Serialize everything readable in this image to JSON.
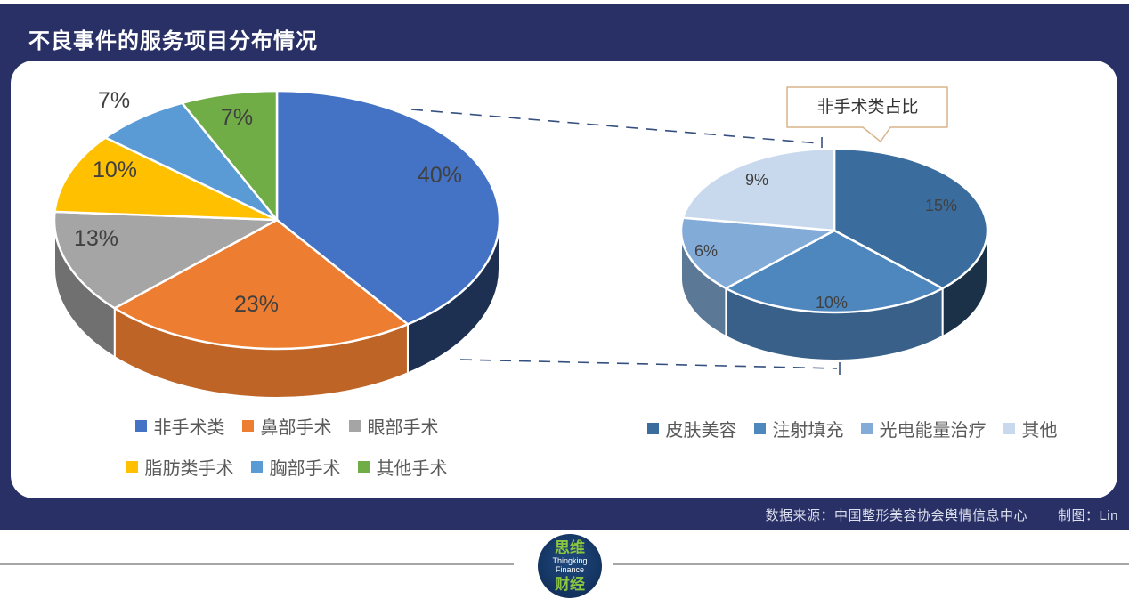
{
  "page": {
    "title": "不良事件的服务项目分布情况"
  },
  "callout": {
    "text": "非手术类占比"
  },
  "footer": {
    "source": "数据来源：中国整形美容协会舆情信息中心",
    "credit": "制图：Lin"
  },
  "logo": {
    "top": "思维",
    "en1": "Thingking",
    "en2": "Finance",
    "bottom": "财经"
  },
  "colors": {
    "background": "#293066",
    "card": "#ffffff",
    "callout_border": "#d9b48b",
    "dashed_line": "#35507f",
    "slice_label_text": "#404040",
    "legend_text": "#595959",
    "logo_green": "#8cc63f"
  },
  "chart_data": [
    {
      "type": "pie",
      "style": "3d",
      "title": "不良事件的服务项目分布情况",
      "categories": [
        "非手术类",
        "鼻部手术",
        "眼部手术",
        "脂肪类手术",
        "胸部手术",
        "其他手术"
      ],
      "values": [
        40,
        23,
        13,
        10,
        7,
        7
      ],
      "unit": "%",
      "labels": [
        "40%",
        "23%",
        "13%",
        "10%",
        "7%",
        "7%"
      ],
      "colors": [
        "#4472C4",
        "#ED7D31",
        "#A5A5A5",
        "#FFC000",
        "#5B9BD5",
        "#70AD47"
      ],
      "legend_position": "bottom",
      "legend_rows": [
        [
          0,
          1,
          2
        ],
        [
          3,
          4,
          5
        ]
      ]
    },
    {
      "type": "pie",
      "style": "3d",
      "title": "非手术类占比",
      "categories": [
        "皮肤美容",
        "注射填充",
        "光电能量治疗",
        "其他"
      ],
      "values": [
        15,
        10,
        6,
        9
      ],
      "unit": "%",
      "labels": [
        "15%",
        "10%",
        "6%",
        "9%"
      ],
      "colors": [
        "#3A6D9E",
        "#4E86BE",
        "#82ABD8",
        "#C9D9ED"
      ],
      "legend_position": "bottom",
      "legend_rows": [
        [
          0,
          1,
          2,
          3
        ]
      ]
    }
  ]
}
